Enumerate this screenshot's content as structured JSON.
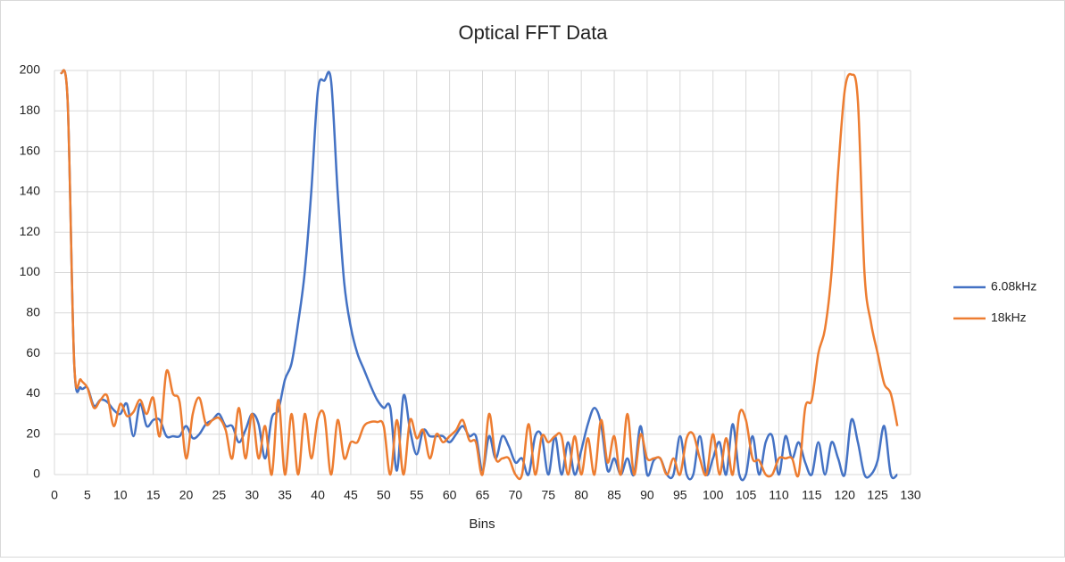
{
  "chart_data": {
    "type": "line",
    "title": "Optical FFT Data",
    "x_label": "Bins",
    "x": [
      1,
      2,
      3,
      4,
      5,
      6,
      7,
      8,
      9,
      10,
      11,
      12,
      13,
      14,
      15,
      16,
      17,
      18,
      19,
      20,
      21,
      22,
      23,
      24,
      25,
      26,
      27,
      28,
      29,
      30,
      31,
      32,
      33,
      34,
      35,
      36,
      37,
      38,
      39,
      40,
      41,
      42,
      43,
      44,
      45,
      46,
      47,
      48,
      49,
      50,
      51,
      52,
      53,
      54,
      55,
      56,
      57,
      58,
      59,
      60,
      61,
      62,
      63,
      64,
      65,
      66,
      67,
      68,
      69,
      70,
      71,
      72,
      73,
      74,
      75,
      76,
      77,
      78,
      79,
      80,
      81,
      82,
      83,
      84,
      85,
      86,
      87,
      88,
      89,
      90,
      91,
      92,
      93,
      94,
      95,
      96,
      97,
      98,
      99,
      100,
      101,
      102,
      103,
      104,
      105,
      106,
      107,
      108,
      109,
      110,
      111,
      112,
      113,
      114,
      115,
      116,
      117,
      118,
      119,
      120,
      121,
      122,
      123,
      124,
      125,
      126,
      127,
      128
    ],
    "series": [
      {
        "name": "6.08kHz",
        "color": "#4472c4",
        "values": [
          199,
          185,
          55,
          43,
          43,
          34,
          37,
          36,
          32,
          30,
          35,
          19,
          35,
          24,
          27,
          27,
          19,
          19,
          19,
          24,
          18,
          20,
          25,
          27,
          30,
          24,
          24,
          16,
          22,
          30,
          25,
          8,
          28,
          32,
          47,
          55,
          75,
          100,
          140,
          190,
          195,
          195,
          140,
          95,
          73,
          60,
          52,
          44,
          37,
          33,
          33,
          2,
          39,
          22,
          10,
          22,
          19,
          19,
          19,
          16,
          20,
          24,
          19,
          19,
          2,
          19,
          8,
          19,
          14,
          6,
          8,
          0,
          19,
          19,
          0,
          19,
          0,
          16,
          0,
          12,
          25,
          33,
          25,
          2,
          8,
          0,
          8,
          0,
          24,
          0,
          7,
          8,
          0,
          0,
          19,
          0,
          0,
          19,
          0,
          8,
          16,
          0,
          25,
          0,
          0,
          19,
          0,
          16,
          19,
          0,
          19,
          8,
          16,
          6,
          0,
          16,
          0,
          16,
          8,
          0,
          27,
          16,
          0,
          0,
          7,
          24,
          0,
          0
        ]
      },
      {
        "name": "18kHz",
        "color": "#ed7d31",
        "values": [
          199,
          185,
          55,
          47,
          43,
          33,
          37,
          39,
          24,
          35,
          29,
          31,
          37,
          30,
          38,
          19,
          51,
          40,
          36,
          8,
          30,
          38,
          25,
          27,
          28,
          22,
          8,
          33,
          8,
          30,
          8,
          24,
          0,
          37,
          0,
          30,
          0,
          30,
          8,
          28,
          29,
          0,
          27,
          8,
          16,
          16,
          24,
          26,
          26,
          24,
          0,
          27,
          0,
          27,
          18,
          22,
          8,
          20,
          16,
          19,
          22,
          27,
          17,
          16,
          0,
          30,
          8,
          8,
          8,
          0,
          0,
          25,
          0,
          19,
          16,
          19,
          19,
          0,
          19,
          0,
          18,
          0,
          27,
          6,
          19,
          0,
          30,
          0,
          20,
          8,
          8,
          8,
          0,
          8,
          0,
          18,
          20,
          8,
          0,
          20,
          0,
          18,
          0,
          30,
          27,
          8,
          7,
          0,
          0,
          8,
          8,
          8,
          0,
          33,
          37,
          60,
          72,
          100,
          150,
          190,
          198,
          185,
          100,
          75,
          60,
          45,
          40,
          24
        ]
      }
    ],
    "xlim": [
      0,
      130
    ],
    "xticks": [
      0,
      5,
      10,
      15,
      20,
      25,
      30,
      35,
      40,
      45,
      50,
      55,
      60,
      65,
      70,
      75,
      80,
      85,
      90,
      95,
      100,
      105,
      110,
      115,
      120,
      125,
      130
    ],
    "ylim": [
      0,
      200
    ],
    "yticks": [
      0,
      20,
      40,
      60,
      80,
      100,
      120,
      140,
      160,
      180,
      200
    ],
    "grid": true,
    "legend": "right"
  }
}
